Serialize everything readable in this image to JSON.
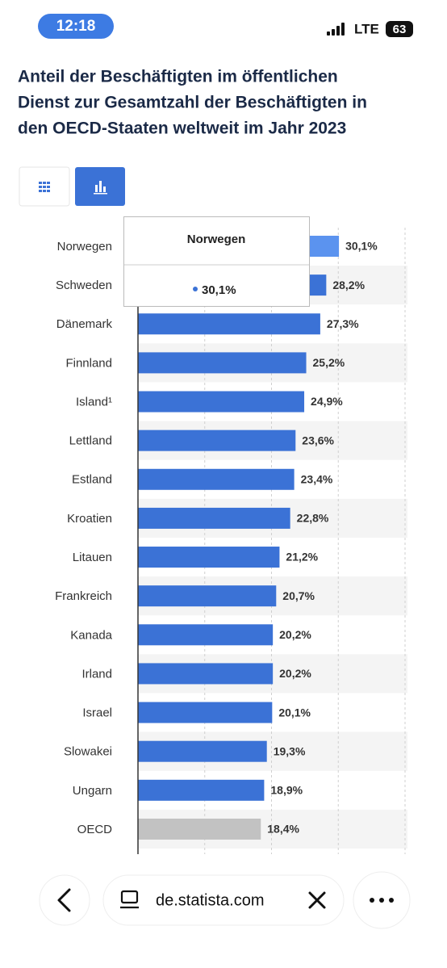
{
  "status_bar": {
    "time": "12:18",
    "network": "LTE",
    "battery": "63"
  },
  "chart_data": {
    "type": "bar",
    "orientation": "horizontal",
    "title": [
      "Anteil der Beschäftigten im öffentlichen",
      "Dienst zur Gesamtzahl der Beschäftigten in",
      "den OECD-Staaten weltweit im Jahr 2023"
    ],
    "categories": [
      "Norwegen",
      "Schweden",
      "Dänemark",
      "Finnland",
      "Island¹",
      "Lettland",
      "Estland",
      "Kroatien",
      "Litauen",
      "Frankreich",
      "Kanada",
      "Irland",
      "Israel",
      "Slowakei",
      "Ungarn",
      "OECD"
    ],
    "values": [
      30.1,
      28.2,
      27.3,
      25.2,
      24.9,
      23.6,
      23.4,
      22.8,
      21.2,
      20.7,
      20.2,
      20.2,
      20.1,
      19.3,
      18.9,
      18.4
    ],
    "value_labels": [
      "30,1%",
      "28,2%",
      "27,3%",
      "25,2%",
      "24,9%",
      "23,6%",
      "23,4%",
      "22,8%",
      "21,2%",
      "20,7%",
      "20,2%",
      "20,2%",
      "20,1%",
      "19,3%",
      "18,9%",
      "18,4%"
    ],
    "colors": [
      "#5b93ef",
      "#3b72d6",
      "#3b72d6",
      "#3b72d6",
      "#3b72d6",
      "#3b72d6",
      "#3b72d6",
      "#3b72d6",
      "#3b72d6",
      "#3b72d6",
      "#3b72d6",
      "#3b72d6",
      "#3b72d6",
      "#3b72d6",
      "#3b72d6",
      "#c2c2c2"
    ],
    "xlim": [
      0,
      40
    ],
    "xticks": [
      0,
      10,
      20,
      30,
      40
    ],
    "grid": true
  },
  "browser": {
    "url": "de.statista.com"
  }
}
